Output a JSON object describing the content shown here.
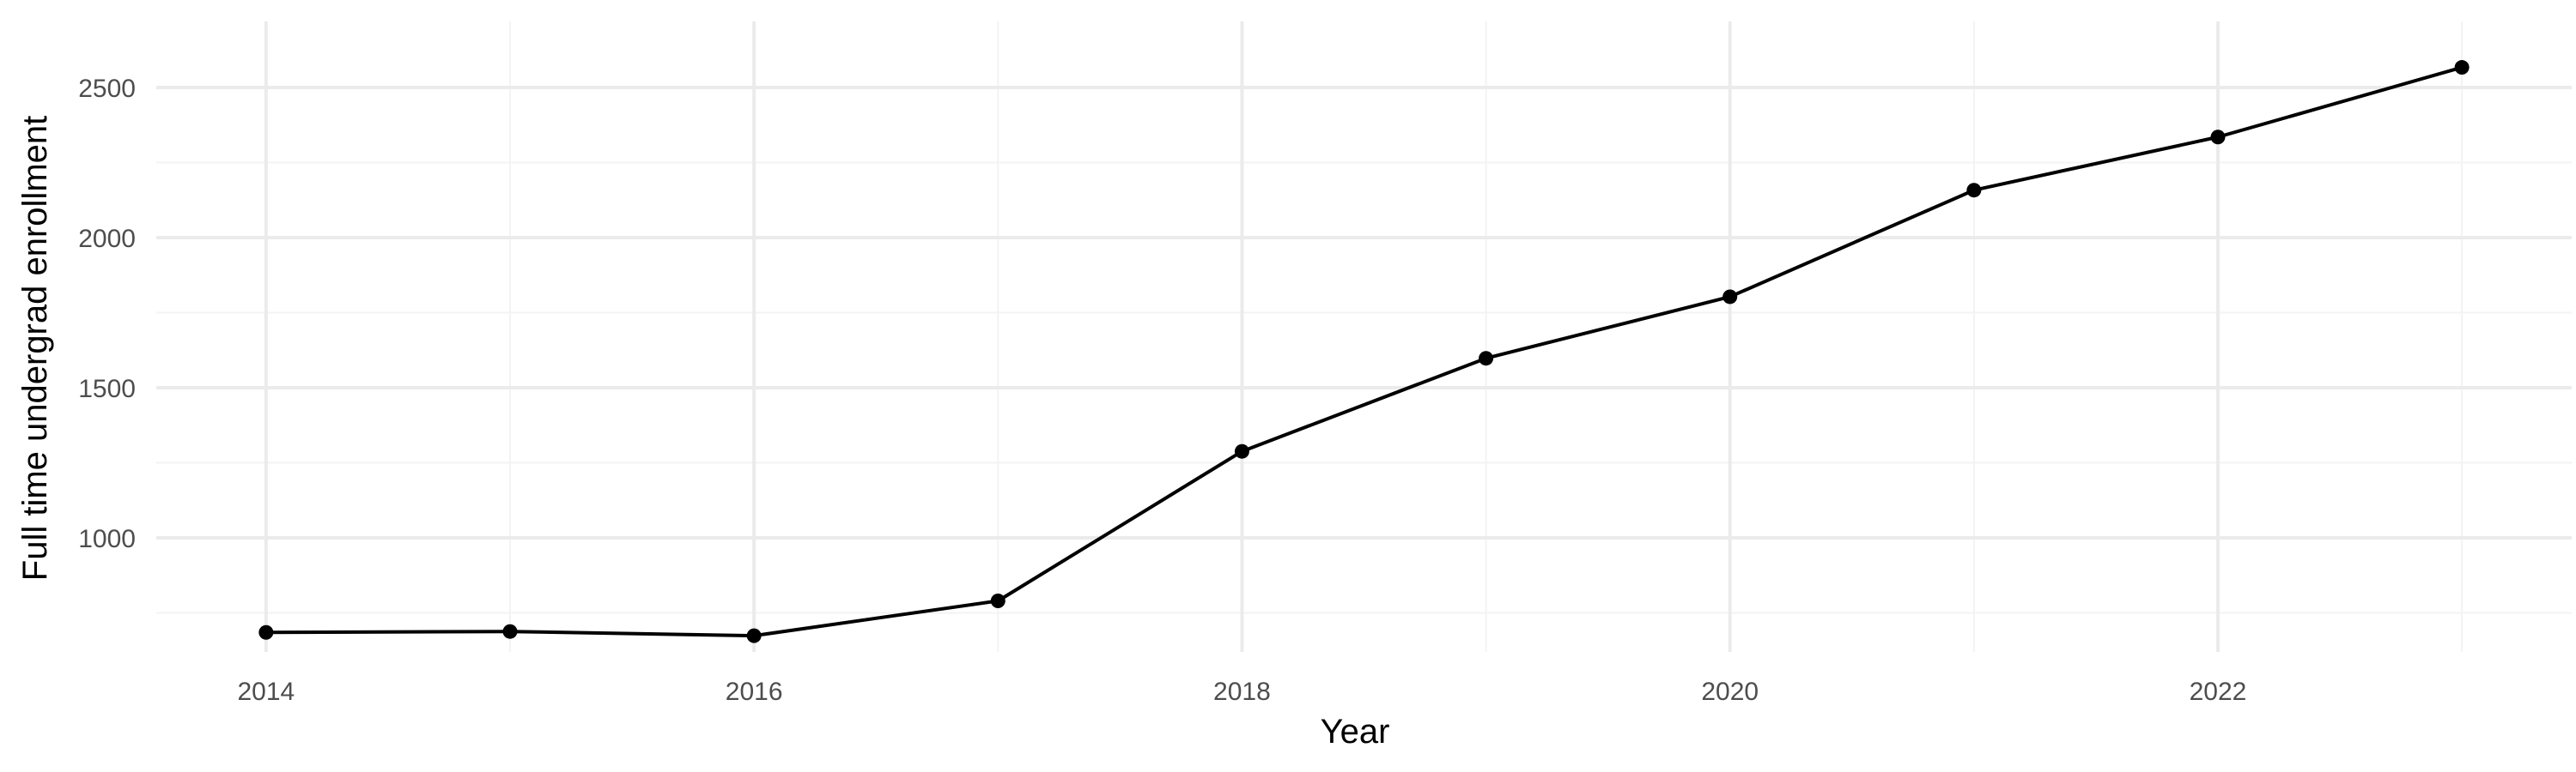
{
  "chart_data": {
    "type": "line",
    "title": "",
    "xlabel": "Year",
    "ylabel": "Full time undergrad enrollment",
    "x": [
      2014,
      2015,
      2016,
      2017,
      2018,
      2019,
      2020,
      2021,
      2022,
      2023
    ],
    "series": [
      {
        "values": [
          685,
          688,
          674,
          790,
          1288,
          1598,
          1803,
          2158,
          2335,
          2567
        ]
      }
    ],
    "xlim": [
      2013.55,
      2023.45
    ],
    "ylim": [
      620,
      2720
    ],
    "x_ticks": [
      2014,
      2016,
      2018,
      2020,
      2022
    ],
    "x_tick_labels": [
      "2014",
      "2016",
      "2018",
      "2020",
      "2022"
    ],
    "x_minor_ticks": [
      2015,
      2017,
      2019,
      2021,
      2023
    ],
    "y_ticks": [
      1000,
      1500,
      2000,
      2500
    ],
    "y_tick_labels": [
      "1000",
      "1500",
      "2000",
      "2500"
    ],
    "y_minor_ticks": [
      750,
      1250,
      1750,
      2250
    ],
    "grid": true,
    "legend": "none",
    "colors": {
      "line": "#000000",
      "point": "#000000",
      "grid_major": "#ebebeb",
      "grid_minor": "#f3f3f3",
      "tick_text": "#4d4d4d",
      "axis_title": "#000000"
    }
  }
}
